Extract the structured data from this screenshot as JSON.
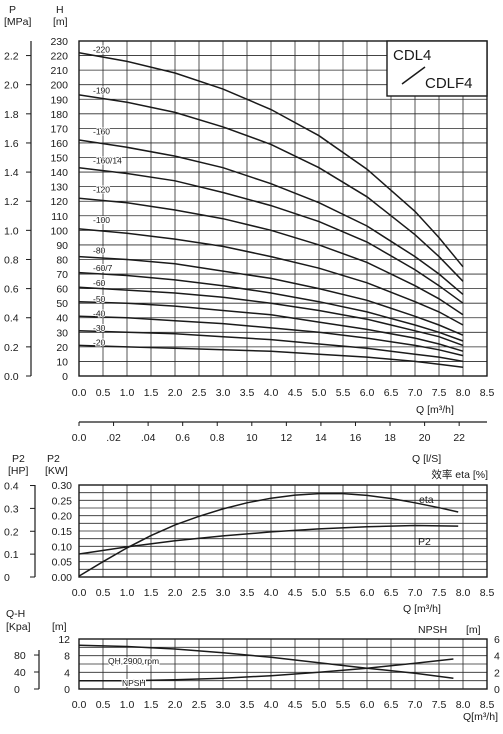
{
  "colors": {
    "ink": "#1a1a1a",
    "grid": "#2a2a2a",
    "background": "#ffffff"
  },
  "chart_data": [
    {
      "type": "line",
      "model_label_top": "CDL4",
      "model_label_bottom": "CDLF4",
      "left_axis_label_p": "P",
      "left_axis_unit_p": "[MPa]",
      "left_axis_label_h": "H",
      "left_axis_unit_h": "[m]",
      "xlabel": "Q [m³/h]",
      "x2label": "Q [l/S]",
      "xlim": [
        0,
        8.5
      ],
      "ylim": [
        0,
        230
      ],
      "grid": true,
      "x_ticks": [
        "0.0",
        "0.5",
        "1.0",
        "1.5",
        "2.0",
        "2.5",
        "3.0",
        "3.5",
        "4.0",
        "4.5",
        "5.0",
        "5.5",
        "6.0",
        "6.5",
        "7.0",
        "7.5",
        "8.0",
        "8.5"
      ],
      "x2_ticks": [
        "0.0",
        ".02",
        ".04",
        "0.6",
        "0.8",
        "10",
        "12",
        "14",
        "16",
        "18",
        "20",
        "22"
      ],
      "h_ticks": [
        "0",
        "10",
        "20",
        "30",
        "40",
        "50",
        "60",
        "70",
        "80",
        "90",
        "100",
        "110",
        "120",
        "130",
        "140",
        "150",
        "160",
        "170",
        "180",
        "190",
        "200",
        "210",
        "220",
        "230"
      ],
      "p_ticks": [
        "0.0",
        "0.2",
        "0.4",
        "0.6",
        "0.8",
        "1.0",
        "1.2",
        "1.4",
        "1.6",
        "1.8",
        "2.0",
        "2.2"
      ],
      "series": [
        {
          "name": "-220",
          "label_y": 224,
          "x": [
            0.0,
            1.0,
            2.0,
            3.0,
            4.0,
            5.0,
            6.0,
            7.0,
            7.5,
            8.0
          ],
          "values": [
            222,
            216,
            208,
            197,
            183,
            165,
            142,
            113,
            95,
            75
          ]
        },
        {
          "name": "-190",
          "label_y": 196,
          "x": [
            0.0,
            1.0,
            2.0,
            3.0,
            4.0,
            5.0,
            6.0,
            7.0,
            7.5,
            8.0
          ],
          "values": [
            193,
            188,
            181,
            171,
            159,
            143,
            123,
            97,
            82,
            65
          ]
        },
        {
          "name": "-160",
          "label_y": 168,
          "x": [
            0.0,
            1.0,
            2.0,
            3.0,
            4.0,
            5.0,
            6.0,
            7.0,
            7.5,
            8.0
          ],
          "values": [
            162,
            157,
            151,
            143,
            132,
            119,
            103,
            82,
            70,
            56
          ]
        },
        {
          "name": "-160/14",
          "label_y": 148,
          "x": [
            0.0,
            1.0,
            2.0,
            3.0,
            4.0,
            5.0,
            6.0,
            7.0,
            7.5,
            8.0
          ],
          "values": [
            143,
            139,
            134,
            126,
            117,
            106,
            92,
            73,
            62,
            50
          ]
        },
        {
          "name": "-120",
          "label_y": 128,
          "x": [
            0.0,
            1.0,
            2.0,
            3.0,
            4.0,
            5.0,
            6.0,
            7.0,
            7.5,
            8.0
          ],
          "values": [
            122,
            119,
            114,
            108,
            100,
            90,
            78,
            62,
            53,
            42
          ]
        },
        {
          "name": "-100",
          "label_y": 107,
          "x": [
            0.0,
            1.0,
            2.0,
            3.0,
            4.0,
            5.0,
            6.0,
            7.0,
            7.5,
            8.0
          ],
          "values": [
            101,
            98,
            94,
            89,
            82,
            74,
            64,
            51,
            44,
            35
          ]
        },
        {
          "name": "-80",
          "label_y": 86,
          "x": [
            0.0,
            1.0,
            2.0,
            3.0,
            4.0,
            5.0,
            6.0,
            7.0,
            7.5,
            8.0
          ],
          "values": [
            82,
            80,
            77,
            72,
            67,
            60,
            52,
            41,
            35,
            28
          ]
        },
        {
          "name": "-60/7",
          "label_y": 74,
          "x": [
            0.0,
            1.0,
            2.0,
            3.0,
            4.0,
            5.0,
            6.0,
            7.0,
            7.5,
            8.0
          ],
          "values": [
            71,
            69,
            66,
            62,
            57,
            51,
            44,
            35,
            30,
            24
          ]
        },
        {
          "name": "-60",
          "label_y": 64,
          "x": [
            0.0,
            1.0,
            2.0,
            3.0,
            4.0,
            5.0,
            6.0,
            7.0,
            7.5,
            8.0
          ],
          "values": [
            61,
            59,
            57,
            54,
            50,
            45,
            39,
            31,
            27,
            21
          ]
        },
        {
          "name": "-50",
          "label_y": 53,
          "x": [
            0.0,
            1.0,
            2.0,
            3.0,
            4.0,
            5.0,
            6.0,
            7.0,
            7.5,
            8.0
          ],
          "values": [
            51,
            50,
            48,
            45,
            42,
            37,
            32,
            26,
            22,
            17
          ]
        },
        {
          "name": "-40",
          "label_y": 43,
          "x": [
            0.0,
            1.0,
            2.0,
            3.0,
            4.0,
            5.0,
            6.0,
            7.0,
            7.5,
            8.0
          ],
          "values": [
            41,
            40,
            38,
            36,
            33,
            30,
            26,
            21,
            18,
            14
          ]
        },
        {
          "name": "-30",
          "label_y": 33,
          "x": [
            0.0,
            1.0,
            2.0,
            3.0,
            4.0,
            5.0,
            6.0,
            7.0,
            7.5,
            8.0
          ],
          "values": [
            31,
            30,
            29,
            27,
            25,
            22,
            19,
            15,
            13,
            10
          ]
        },
        {
          "name": "-20",
          "label_y": 23,
          "x": [
            0.0,
            1.0,
            2.0,
            3.0,
            4.0,
            5.0,
            6.0,
            7.0,
            7.5,
            8.0
          ],
          "values": [
            21,
            20,
            19,
            18,
            17,
            15,
            13,
            10,
            8,
            6
          ]
        }
      ]
    },
    {
      "type": "line",
      "left_axis_label_hp": "P2",
      "left_axis_unit_hp": "[HP]",
      "left_axis_label_kw": "P2",
      "left_axis_unit_kw": "[KW]",
      "right_axis_label": "效率 eta [%]",
      "xlabel": "Q [m³/h]",
      "xlim": [
        0,
        8.5
      ],
      "ylim": [
        0,
        0.3
      ],
      "grid": true,
      "x_ticks": [
        "0.0",
        "0.5",
        "1.0",
        "1.5",
        "2.0",
        "2.5",
        "3.0",
        "3.5",
        "4.0",
        "4.5",
        "5.0",
        "5.5",
        "6.0",
        "6.5",
        "7.0",
        "7.5",
        "8.0",
        "8.5"
      ],
      "kw_ticks": [
        "0.00",
        "0.05",
        "0.10",
        "0.15",
        "0.20",
        "0.25",
        "0.30"
      ],
      "hp_ticks": [
        "0",
        "0.1",
        "0.2",
        "0.3",
        "0.4"
      ],
      "series": [
        {
          "name": "eta",
          "x": [
            0.0,
            0.5,
            1.0,
            1.5,
            2.0,
            2.5,
            3.0,
            3.5,
            4.0,
            4.5,
            5.0,
            5.5,
            6.0,
            6.5,
            7.0,
            7.5,
            7.9
          ],
          "values": [
            0.003,
            0.05,
            0.095,
            0.135,
            0.17,
            0.198,
            0.222,
            0.242,
            0.257,
            0.267,
            0.272,
            0.272,
            0.266,
            0.256,
            0.242,
            0.226,
            0.212
          ]
        },
        {
          "name": "P2",
          "x": [
            0.0,
            1.0,
            2.0,
            3.0,
            4.0,
            5.0,
            6.0,
            7.0,
            7.9
          ],
          "values": [
            0.075,
            0.098,
            0.118,
            0.134,
            0.147,
            0.157,
            0.164,
            0.168,
            0.166
          ]
        }
      ]
    },
    {
      "type": "line",
      "left_axis_label_kpa": "Q-H",
      "left_axis_unit_kpa": "[Kpa]",
      "left_axis_unit_m": "[m]",
      "right_axis_label": "NPSH",
      "right_axis_unit": "[m]",
      "xlabel": "Q[m³/h]",
      "xlim": [
        0,
        8.5
      ],
      "ylim": [
        0,
        12
      ],
      "grid": true,
      "x_ticks": [
        "0.0",
        "0.5",
        "1.0",
        "1.5",
        "2.0",
        "2.5",
        "3.0",
        "3.5",
        "4.0",
        "4.5",
        "5.0",
        "5.5",
        "6.0",
        "6.5",
        "7.0",
        "7.5",
        "8.0",
        "8.5"
      ],
      "m_ticks": [
        "0",
        "4",
        "8",
        "12"
      ],
      "kpa_ticks": [
        "0",
        "40",
        "80"
      ],
      "npsh_ticks": [
        "0",
        "2",
        "4",
        "6"
      ],
      "series": [
        {
          "name": "QH 2900 rpm",
          "x": [
            0.0,
            1.0,
            2.0,
            3.0,
            4.0,
            5.0,
            6.0,
            7.0,
            7.8
          ],
          "values": [
            10.5,
            10.2,
            9.6,
            8.7,
            7.6,
            6.3,
            5.0,
            3.8,
            2.6
          ]
        },
        {
          "name": "NPSH",
          "x": [
            0.0,
            1.0,
            2.0,
            3.0,
            4.0,
            5.0,
            6.0,
            7.0,
            7.8
          ],
          "values": [
            1.0,
            1.0,
            1.1,
            1.3,
            1.6,
            2.0,
            2.5,
            3.1,
            3.6
          ]
        }
      ]
    }
  ]
}
